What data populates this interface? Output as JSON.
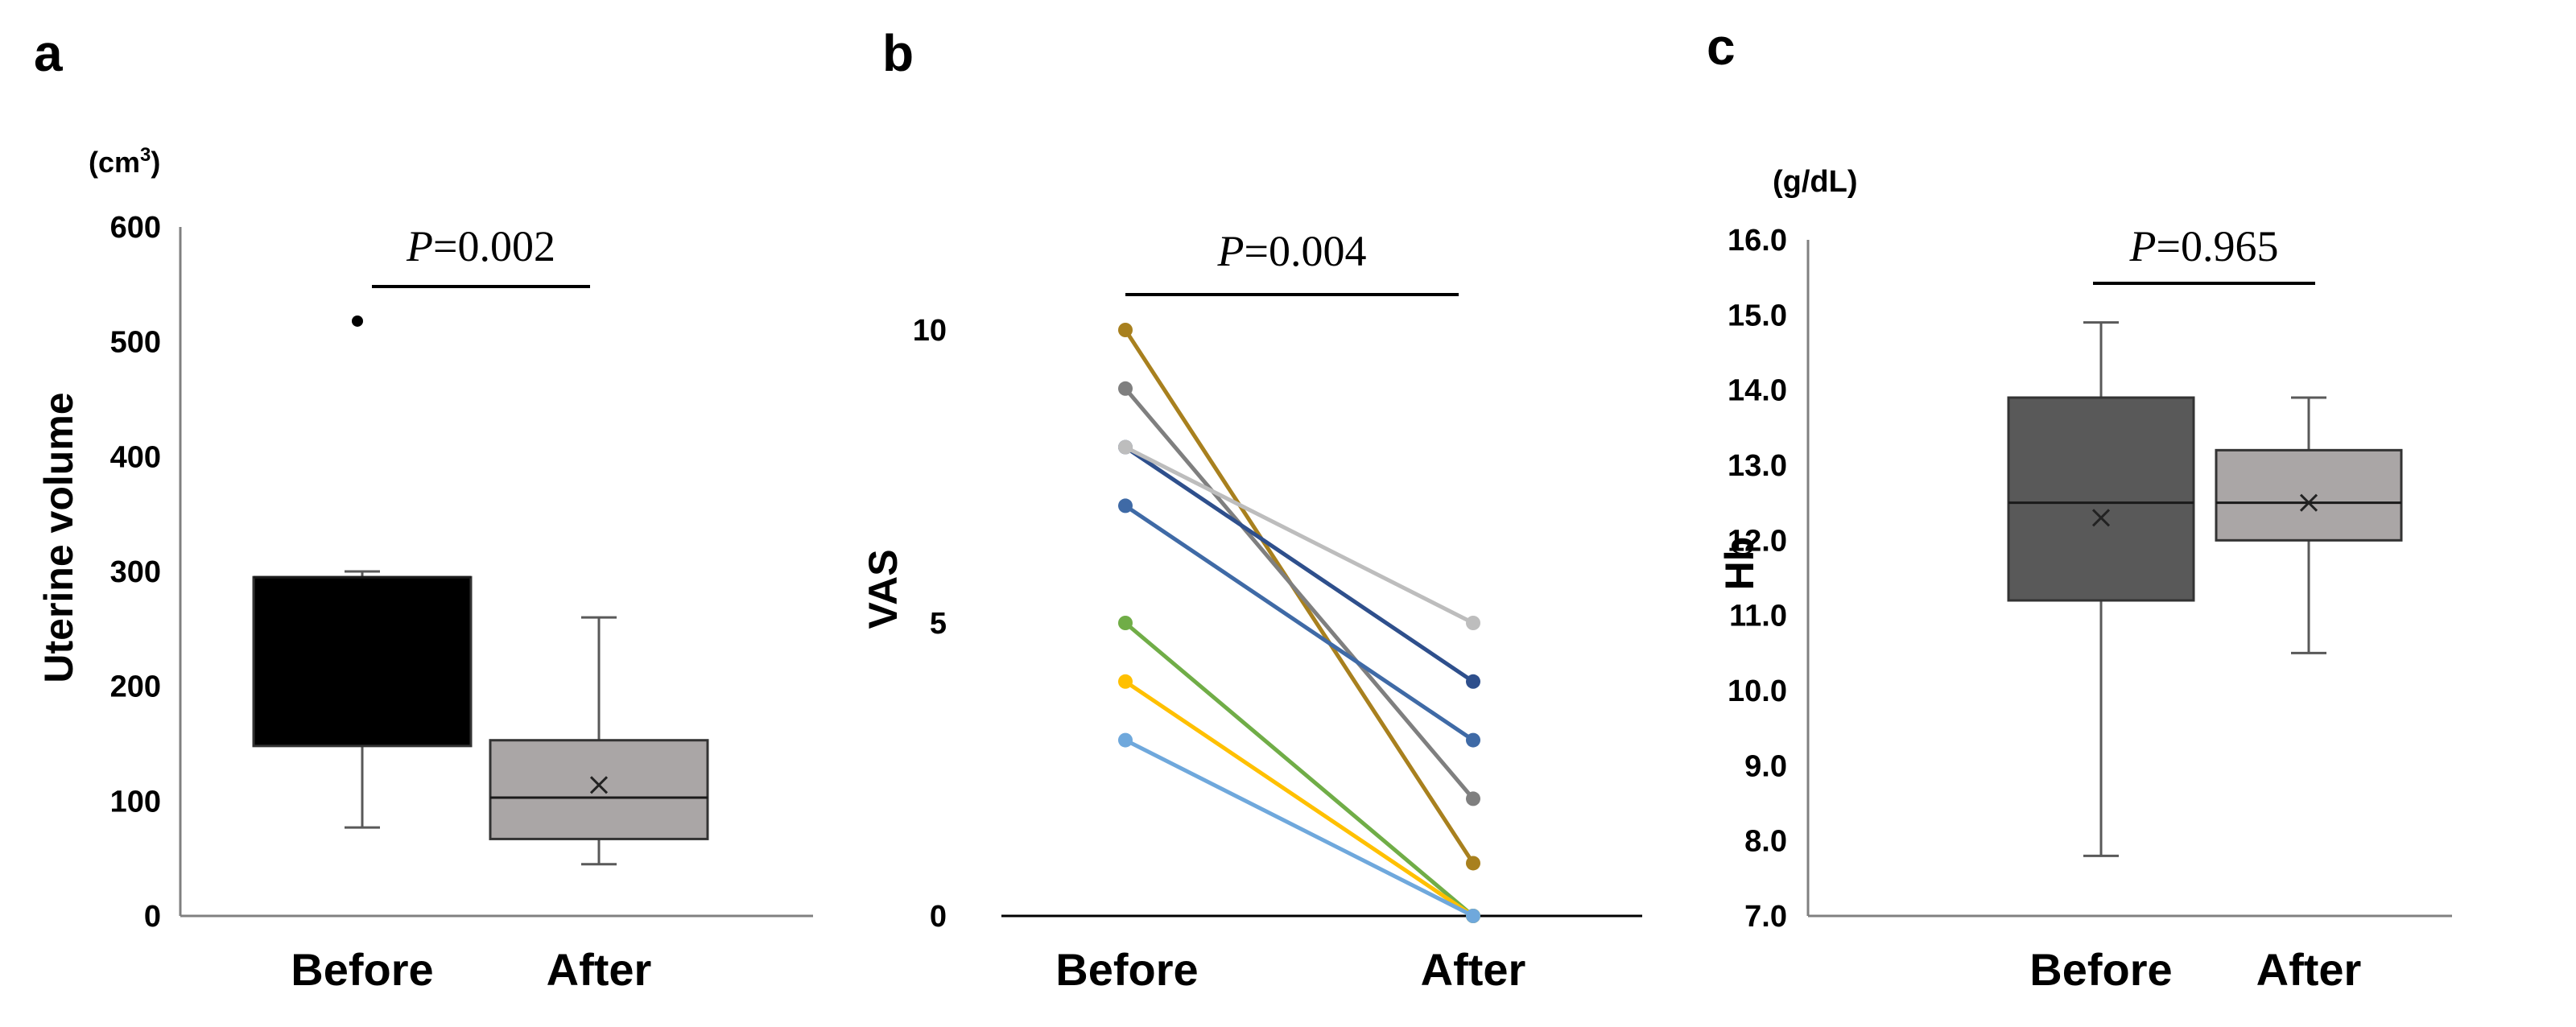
{
  "chart_data": [
    {
      "panel": "a",
      "type": "box",
      "unit": "(cm",
      "unit_sup": "3",
      "unit_close": ")",
      "ylabel": "Uterine volume",
      "ylim": [
        0,
        600
      ],
      "yticks": [
        "0",
        "100",
        "200",
        "300",
        "400",
        "500",
        "600"
      ],
      "categories": [
        "Before",
        "After"
      ],
      "boxes": [
        {
          "category": "Before",
          "min": 77,
          "q1": 148,
          "median": 295,
          "q3": 295,
          "max": 300,
          "mean": null,
          "outliers": [
            518
          ],
          "color": "#000000"
        },
        {
          "category": "After",
          "min": 45,
          "q1": 67,
          "median": 103,
          "q3": 153,
          "max": 260,
          "mean": 114,
          "outliers": [],
          "color": "#aaa6a6"
        }
      ],
      "comparison": {
        "p_italic": "P",
        "p_text": "=0.002"
      }
    },
    {
      "panel": "b",
      "type": "line",
      "ylabel": "VAS",
      "ylim": [
        0,
        10
      ],
      "yticks": [
        "0",
        "5",
        "10"
      ],
      "categories": [
        "Before",
        "After"
      ],
      "series": [
        {
          "values": [
            10,
            0.9
          ],
          "color": "#a8801e"
        },
        {
          "values": [
            9,
            2
          ],
          "color": "#7f7f7f"
        },
        {
          "values": [
            8,
            4
          ],
          "color": "#2e4f8c"
        },
        {
          "values": [
            7,
            3
          ],
          "color": "#3f6aa6"
        },
        {
          "values": [
            8,
            5
          ],
          "color": "#bdbdbd"
        },
        {
          "values": [
            5,
            0
          ],
          "color": "#70ad47"
        },
        {
          "values": [
            4,
            0
          ],
          "color": "#ffc000"
        },
        {
          "values": [
            3,
            0
          ],
          "color": "#6fa8dc"
        }
      ],
      "comparison": {
        "p_italic": "P",
        "p_text": "=0.004"
      }
    },
    {
      "panel": "c",
      "type": "box",
      "unit": "(g/dL)",
      "ylabel": "Hb",
      "ylim": [
        7,
        16
      ],
      "yticks": [
        "7.0",
        "8.0",
        "9.0",
        "10.0",
        "11.0",
        "12.0",
        "13.0",
        "14.0",
        "15.0",
        "16.0"
      ],
      "categories": [
        "Before",
        "After"
      ],
      "boxes": [
        {
          "category": "Before",
          "min": 7.8,
          "q1": 11.2,
          "median": 12.5,
          "q3": 13.9,
          "max": 14.9,
          "mean": 12.3,
          "outliers": [],
          "color": "#595959"
        },
        {
          "category": "After",
          "min": 10.5,
          "q1": 12.0,
          "median": 12.5,
          "q3": 13.2,
          "max": 13.9,
          "mean": 12.5,
          "outliers": [],
          "color": "#aaa6a6"
        }
      ],
      "comparison": {
        "p_italic": "P",
        "p_text": "=0.965"
      }
    }
  ]
}
